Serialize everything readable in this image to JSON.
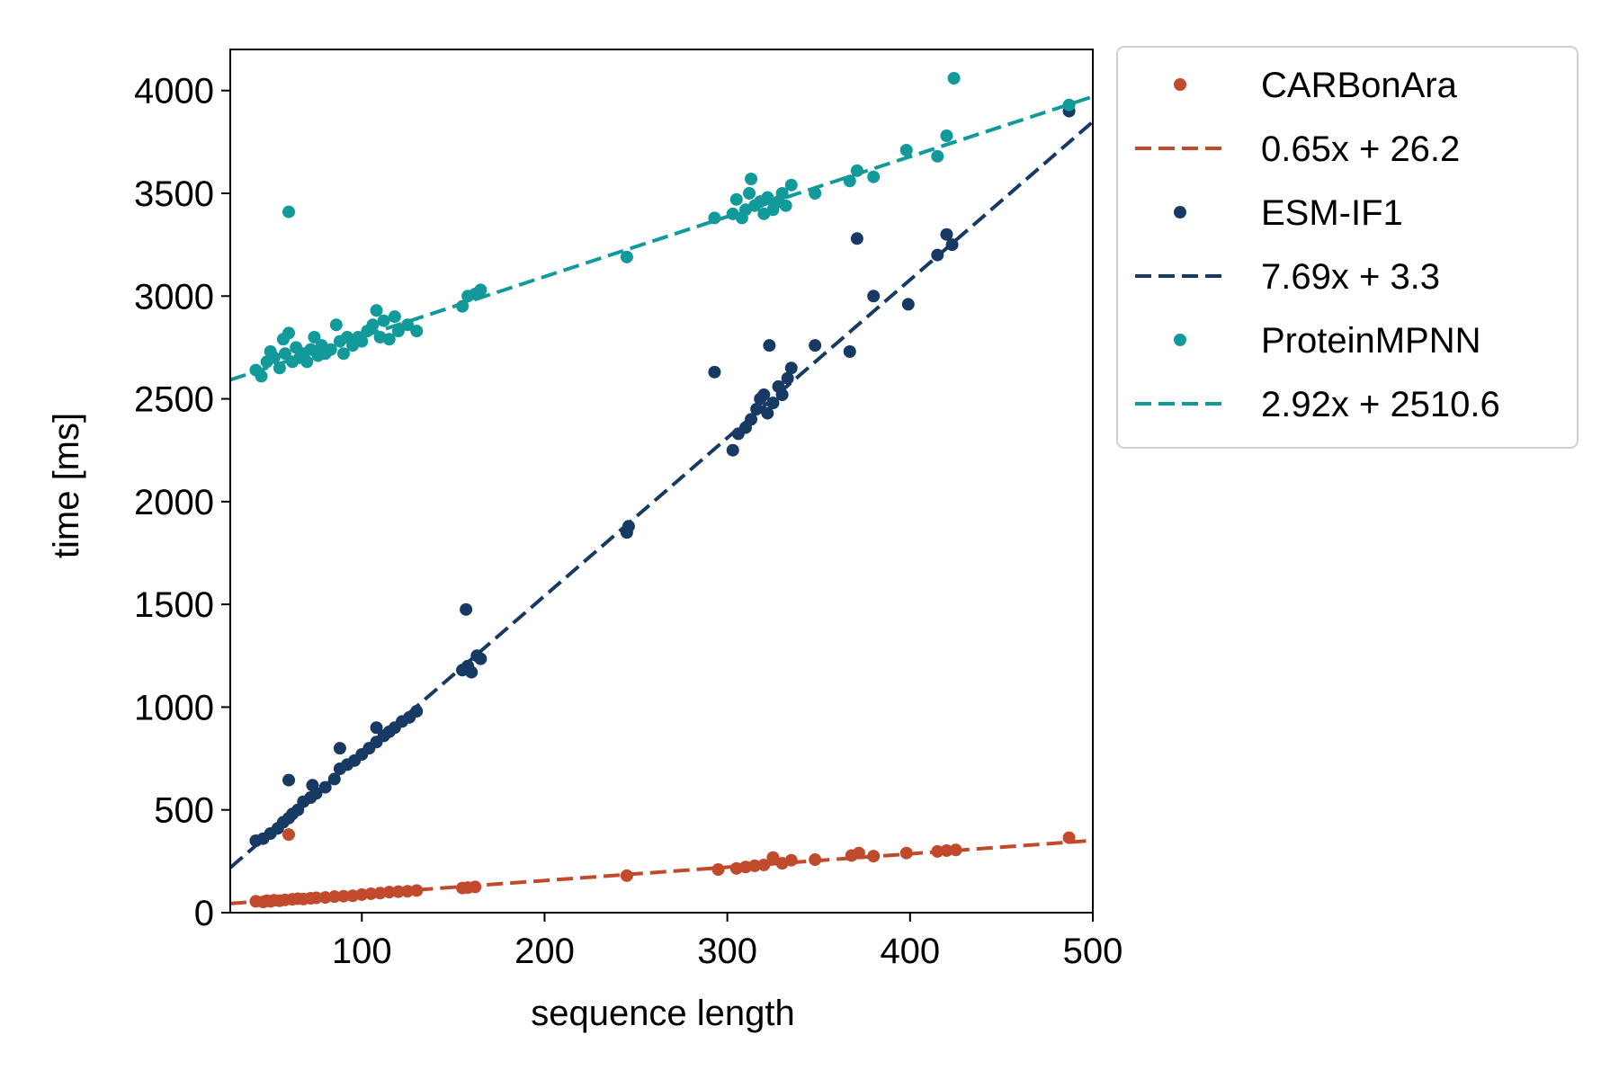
{
  "chart_data": {
    "type": "scatter",
    "title": "",
    "xlabel": "sequence length",
    "ylabel": "time [ms]",
    "xlim": [
      28,
      500
    ],
    "ylim": [
      0,
      4200
    ],
    "xticks": [
      100,
      200,
      300,
      400,
      500
    ],
    "yticks": [
      0,
      500,
      1000,
      1500,
      2000,
      2500,
      3000,
      3500,
      4000
    ],
    "grid": false,
    "legend_position": "outside-top-right",
    "series": [
      {
        "name": "CARBonAra",
        "fit_label": "0.65x + 26.2",
        "color": "#c04a2b",
        "slope": 0.65,
        "intercept": 26.2,
        "points": [
          [
            42,
            55
          ],
          [
            46,
            52
          ],
          [
            48,
            58
          ],
          [
            50,
            55
          ],
          [
            52,
            60
          ],
          [
            55,
            58
          ],
          [
            58,
            62
          ],
          [
            60,
            380
          ],
          [
            62,
            65
          ],
          [
            65,
            68
          ],
          [
            68,
            66
          ],
          [
            72,
            70
          ],
          [
            75,
            72
          ],
          [
            80,
            74
          ],
          [
            85,
            78
          ],
          [
            90,
            80
          ],
          [
            95,
            82
          ],
          [
            100,
            88
          ],
          [
            105,
            92
          ],
          [
            110,
            95
          ],
          [
            115,
            100
          ],
          [
            120,
            102
          ],
          [
            125,
            104
          ],
          [
            130,
            108
          ],
          [
            155,
            120
          ],
          [
            158,
            122
          ],
          [
            162,
            125
          ],
          [
            245,
            180
          ],
          [
            295,
            210
          ],
          [
            305,
            215
          ],
          [
            310,
            222
          ],
          [
            315,
            228
          ],
          [
            320,
            232
          ],
          [
            325,
            268
          ],
          [
            330,
            240
          ],
          [
            335,
            255
          ],
          [
            348,
            258
          ],
          [
            368,
            278
          ],
          [
            372,
            290
          ],
          [
            380,
            275
          ],
          [
            398,
            290
          ],
          [
            415,
            298
          ],
          [
            420,
            302
          ],
          [
            425,
            305
          ],
          [
            487,
            365
          ]
        ]
      },
      {
        "name": "ESM-IF1",
        "fit_label": "7.69x + 3.3",
        "color": "#163a63",
        "slope": 7.69,
        "intercept": 3.3,
        "points": [
          [
            42,
            350
          ],
          [
            46,
            360
          ],
          [
            50,
            385
          ],
          [
            54,
            410
          ],
          [
            57,
            440
          ],
          [
            60,
            460
          ],
          [
            62,
            480
          ],
          [
            65,
            500
          ],
          [
            68,
            540
          ],
          [
            72,
            560
          ],
          [
            75,
            580
          ],
          [
            80,
            610
          ],
          [
            85,
            650
          ],
          [
            88,
            700
          ],
          [
            92,
            720
          ],
          [
            96,
            740
          ],
          [
            100,
            770
          ],
          [
            104,
            800
          ],
          [
            108,
            830
          ],
          [
            112,
            860
          ],
          [
            115,
            880
          ],
          [
            118,
            900
          ],
          [
            122,
            930
          ],
          [
            126,
            950
          ],
          [
            130,
            980
          ],
          [
            60,
            645
          ],
          [
            73,
            620
          ],
          [
            88,
            800
          ],
          [
            108,
            900
          ],
          [
            155,
            1180
          ],
          [
            158,
            1200
          ],
          [
            160,
            1170
          ],
          [
            163,
            1250
          ],
          [
            165,
            1235
          ],
          [
            157,
            1475
          ],
          [
            245,
            1850
          ],
          [
            246,
            1880
          ],
          [
            293,
            2630
          ],
          [
            303,
            2250
          ],
          [
            306,
            2330
          ],
          [
            310,
            2360
          ],
          [
            313,
            2400
          ],
          [
            316,
            2450
          ],
          [
            318,
            2500
          ],
          [
            320,
            2520
          ],
          [
            322,
            2430
          ],
          [
            325,
            2480
          ],
          [
            328,
            2560
          ],
          [
            330,
            2520
          ],
          [
            333,
            2600
          ],
          [
            335,
            2650
          ],
          [
            323,
            2760
          ],
          [
            348,
            2760
          ],
          [
            367,
            2730
          ],
          [
            371,
            3280
          ],
          [
            380,
            3000
          ],
          [
            399,
            2960
          ],
          [
            415,
            3200
          ],
          [
            420,
            3300
          ],
          [
            423,
            3250
          ],
          [
            487,
            3900
          ]
        ]
      },
      {
        "name": "ProteinMPNN",
        "fit_label": "2.92x + 2510.6",
        "color": "#12999a",
        "slope": 2.92,
        "intercept": 2510.6,
        "points": [
          [
            42,
            2640
          ],
          [
            45,
            2610
          ],
          [
            48,
            2680
          ],
          [
            50,
            2730
          ],
          [
            52,
            2700
          ],
          [
            55,
            2650
          ],
          [
            57,
            2790
          ],
          [
            58,
            2720
          ],
          [
            60,
            2820
          ],
          [
            62,
            2680
          ],
          [
            64,
            2750
          ],
          [
            66,
            2700
          ],
          [
            68,
            2720
          ],
          [
            70,
            2680
          ],
          [
            72,
            2740
          ],
          [
            74,
            2800
          ],
          [
            76,
            2710
          ],
          [
            78,
            2760
          ],
          [
            80,
            2720
          ],
          [
            83,
            2740
          ],
          [
            86,
            2860
          ],
          [
            88,
            2780
          ],
          [
            90,
            2720
          ],
          [
            92,
            2800
          ],
          [
            95,
            2760
          ],
          [
            98,
            2800
          ],
          [
            100,
            2780
          ],
          [
            103,
            2830
          ],
          [
            106,
            2860
          ],
          [
            108,
            2930
          ],
          [
            110,
            2800
          ],
          [
            112,
            2880
          ],
          [
            115,
            2790
          ],
          [
            118,
            2900
          ],
          [
            120,
            2830
          ],
          [
            125,
            2860
          ],
          [
            130,
            2830
          ],
          [
            60,
            3410
          ],
          [
            155,
            2950
          ],
          [
            158,
            3000
          ],
          [
            162,
            3010
          ],
          [
            165,
            3030
          ],
          [
            245,
            3190
          ],
          [
            293,
            3380
          ],
          [
            303,
            3400
          ],
          [
            305,
            3470
          ],
          [
            308,
            3380
          ],
          [
            310,
            3420
          ],
          [
            312,
            3500
          ],
          [
            313,
            3570
          ],
          [
            315,
            3440
          ],
          [
            318,
            3460
          ],
          [
            320,
            3400
          ],
          [
            322,
            3480
          ],
          [
            325,
            3420
          ],
          [
            328,
            3460
          ],
          [
            330,
            3500
          ],
          [
            332,
            3440
          ],
          [
            335,
            3540
          ],
          [
            348,
            3500
          ],
          [
            367,
            3560
          ],
          [
            371,
            3610
          ],
          [
            380,
            3580
          ],
          [
            398,
            3710
          ],
          [
            415,
            3680
          ],
          [
            420,
            3780
          ],
          [
            424,
            4060
          ],
          [
            487,
            3930
          ]
        ]
      }
    ]
  }
}
